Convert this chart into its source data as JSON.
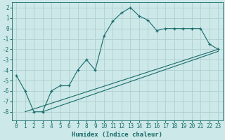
{
  "xlabel": "Humidex (Indice chaleur)",
  "bg_color": "#cce8e8",
  "grid_color": "#b0d0d0",
  "line_color": "#1a6b6b",
  "xlim": [
    -0.5,
    23.5
  ],
  "ylim": [
    -8.8,
    2.5
  ],
  "xticks": [
    0,
    1,
    2,
    3,
    4,
    5,
    6,
    7,
    8,
    9,
    10,
    11,
    12,
    13,
    14,
    15,
    16,
    17,
    18,
    19,
    20,
    21,
    22,
    23
  ],
  "yticks": [
    -8,
    -7,
    -6,
    -5,
    -4,
    -3,
    -2,
    -1,
    0,
    1,
    2
  ],
  "curve1_x": [
    0,
    1,
    2,
    3,
    4,
    5,
    6,
    7,
    8,
    9,
    10,
    11,
    12,
    13,
    14,
    15,
    16,
    17,
    18,
    19,
    20,
    21,
    22,
    23
  ],
  "curve1_y": [
    -4.5,
    -6,
    -8,
    -8,
    -6,
    -5.5,
    -5.5,
    -4,
    -3,
    -4,
    -0.7,
    0.7,
    1.5,
    2.0,
    1.2,
    0.8,
    -0.2,
    0,
    0,
    0,
    0,
    0,
    -1.5,
    -2
  ],
  "line2_x": [
    1,
    23
  ],
  "line2_y": [
    -8,
    -2
  ],
  "line3_x": [
    3,
    23
  ],
  "line3_y": [
    -8,
    -2.2
  ],
  "tick_fontsize": 5.5,
  "xlabel_fontsize": 6.5
}
